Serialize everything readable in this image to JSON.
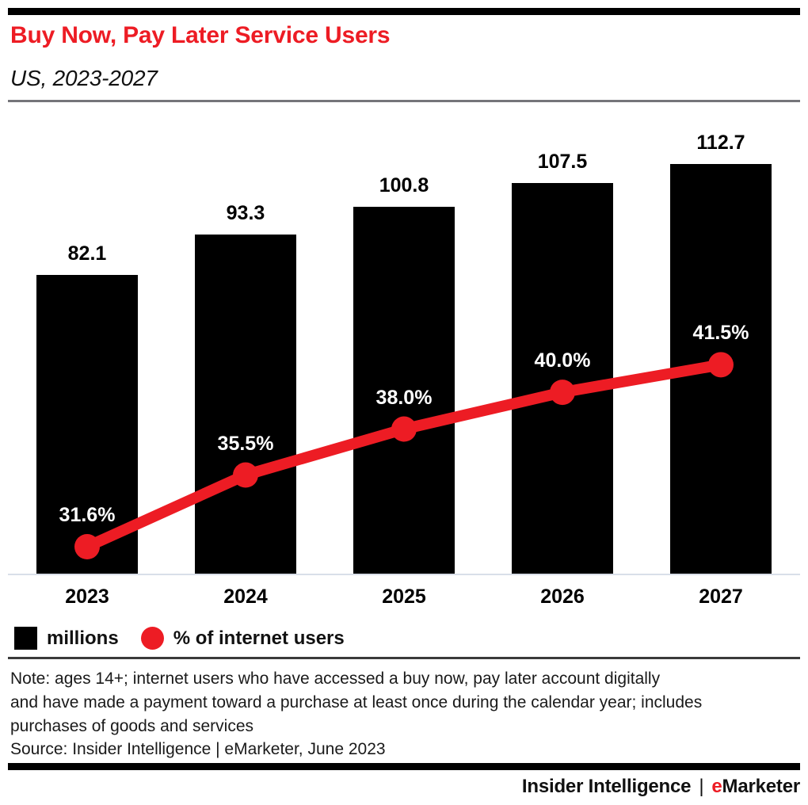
{
  "page": {
    "background": "#ffffff",
    "accent_red": "#ed1c24",
    "bar_black": "#000000",
    "axis_line_color": "#d9dfe9"
  },
  "header": {
    "title": "Buy Now, Pay Later Service Users",
    "subtitle": "US, 2023-2027"
  },
  "chart_data": {
    "type": "combo",
    "title": "Buy Now, Pay Later Service Users",
    "subtitle": "US, 2023-2027",
    "categories": [
      "2023",
      "2024",
      "2025",
      "2026",
      "2027"
    ],
    "series": [
      {
        "name": "millions",
        "type": "bar",
        "color": "#000000",
        "values": [
          82.1,
          93.3,
          100.8,
          107.5,
          112.7
        ],
        "data_labels": [
          "82.1",
          "93.3",
          "100.8",
          "107.5",
          "112.7"
        ],
        "label_color": "#000000"
      },
      {
        "name": "% of internet users",
        "type": "line",
        "color": "#ed1c24",
        "values": [
          31.6,
          35.5,
          38.0,
          40.0,
          41.5
        ],
        "data_labels": [
          "31.6%",
          "35.5%",
          "38.0%",
          "40.0%",
          "41.5%"
        ],
        "label_color": "#ffffff"
      }
    ],
    "xlabel": "",
    "ylabel": "",
    "value_axis": {
      "visible": false,
      "min": 0
    },
    "grid": false,
    "legend_position": "bottom-left"
  },
  "legend": {
    "items": [
      {
        "label": "millions",
        "swatch": "square",
        "color": "#000000"
      },
      {
        "label": "% of internet users",
        "swatch": "circle",
        "color": "#ed1c24"
      }
    ]
  },
  "note": {
    "lines": [
      "Note: ages 14+; internet users who have accessed a buy now, pay later account digitally",
      "and have made a payment toward a purchase at least once during the calendar year; includes",
      "purchases of goods and services"
    ]
  },
  "source": "Source: Insider Intelligence | eMarketer, June 2023",
  "footer": {
    "brand_left": "Insider Intelligence",
    "separator": "|",
    "brand_accent": "e",
    "brand_rest": "Marketer"
  }
}
